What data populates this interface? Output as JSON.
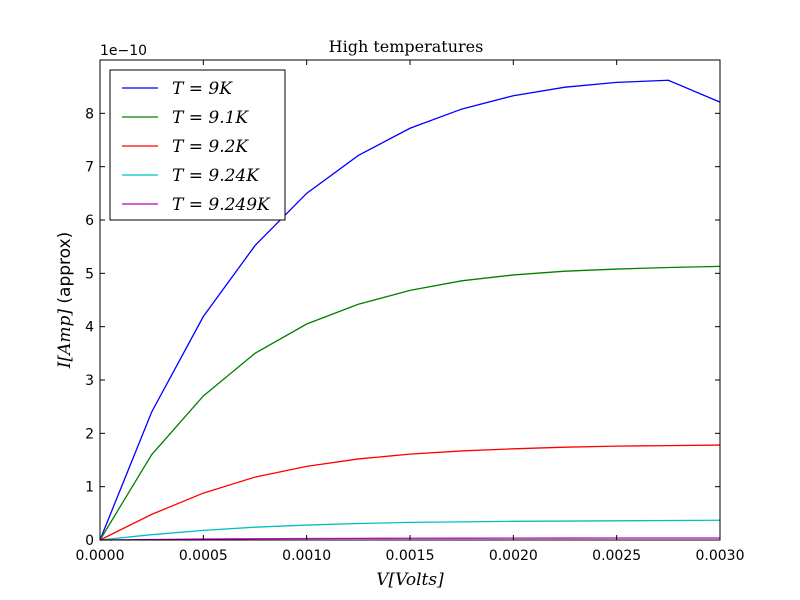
{
  "chart_data": {
    "type": "line",
    "title": "High temperatures",
    "xlabel": "V[Volts]",
    "ylabel_math": "I[Amp]",
    "ylabel_suffix": " (approx)",
    "y_offset_label": "1e−10",
    "xlim": [
      0,
      0.003
    ],
    "ylim": [
      0,
      9
    ],
    "x_ticks": [
      0,
      0.0005,
      0.001,
      0.0015,
      0.002,
      0.0025,
      0.003
    ],
    "x_tick_labels": [
      "0.0000",
      "0.0005",
      "0.0010",
      "0.0015",
      "0.0020",
      "0.0025",
      "0.0030"
    ],
    "y_ticks": [
      0,
      1,
      2,
      3,
      4,
      5,
      6,
      7,
      8
    ],
    "y_tick_labels": [
      "0",
      "1",
      "2",
      "3",
      "4",
      "5",
      "6",
      "7",
      "8"
    ],
    "grid": false,
    "legend_position": "top-left",
    "x": [
      0,
      0.00025,
      0.0005,
      0.00075,
      0.001,
      0.00125,
      0.0015,
      0.00175,
      0.002,
      0.00225,
      0.0025,
      0.00275,
      0.003
    ],
    "series": [
      {
        "name": "T = 9K",
        "color": "#0000ff",
        "values": [
          0,
          2.4,
          4.19,
          5.52,
          6.5,
          7.21,
          7.72,
          8.08,
          8.33,
          8.49,
          8.58,
          8.62,
          8.21
        ]
      },
      {
        "name": "T = 9.1K",
        "color": "#008000",
        "values": [
          0,
          1.6,
          2.7,
          3.5,
          4.05,
          4.42,
          4.68,
          4.86,
          4.97,
          5.04,
          5.08,
          5.11,
          5.13
        ]
      },
      {
        "name": "T = 9.2K",
        "color": "#ff0000",
        "values": [
          0,
          0.48,
          0.88,
          1.18,
          1.38,
          1.52,
          1.61,
          1.67,
          1.71,
          1.74,
          1.76,
          1.77,
          1.78
        ]
      },
      {
        "name": "T = 9.24K",
        "color": "#00bfbf",
        "values": [
          0,
          0.1,
          0.18,
          0.24,
          0.28,
          0.31,
          0.33,
          0.34,
          0.35,
          0.355,
          0.36,
          0.365,
          0.37
        ]
      },
      {
        "name": "T = 9.249K",
        "color": "#bf00bf",
        "values": [
          0,
          0.01,
          0.018,
          0.024,
          0.028,
          0.031,
          0.033,
          0.034,
          0.035,
          0.036,
          0.037,
          0.037,
          0.038
        ]
      }
    ]
  }
}
